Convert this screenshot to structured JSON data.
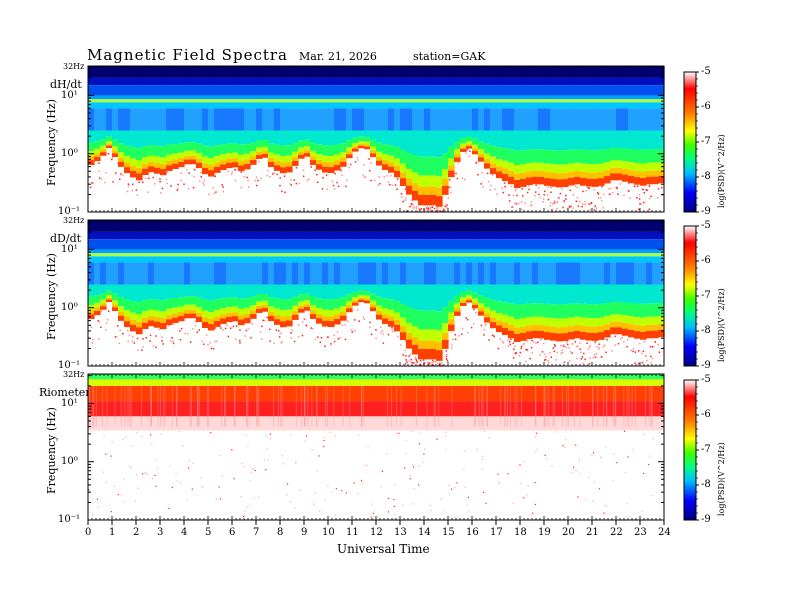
{
  "header": {
    "title": "Magnetic  Field  Spectra",
    "date": "Mar. 21, 2026",
    "station": "station=GAK"
  },
  "chart_data": {
    "type": "heatmap",
    "xlabel": "Universal Time",
    "x_ticks": [
      "0",
      "1",
      "2",
      "3",
      "4",
      "5",
      "6",
      "7",
      "8",
      "9",
      "10",
      "11",
      "12",
      "13",
      "14",
      "15",
      "16",
      "17",
      "18",
      "19",
      "20",
      "21",
      "22",
      "23",
      "24"
    ],
    "xlim": [
      0,
      24
    ],
    "colorbar": {
      "label": "log(PSD)(V^2/Hz)",
      "ticks": [
        "-5",
        "-6",
        "-7",
        "-8",
        "-9"
      ],
      "range": [
        -9,
        -5
      ],
      "colors": [
        "#000080",
        "#0000ff",
        "#00c0ff",
        "#00ff80",
        "#40ff00",
        "#ffff00",
        "#ff8000",
        "#ff0000",
        "#ffffff"
      ]
    },
    "panels": [
      {
        "name": "dH/dt",
        "ylabel": "Frequency  (Hz)",
        "top_label": "32Hz",
        "y_ticks": [
          "10¹",
          "10⁰",
          "10⁻¹"
        ],
        "ylim_hz": [
          0.1,
          32
        ],
        "boundary_hz": [
          0.6,
          0.7,
          0.9,
          1.3,
          0.7,
          0.5,
          0.4,
          0.35,
          0.45,
          0.5,
          0.4,
          0.5,
          0.55,
          0.6,
          0.7,
          0.6,
          0.45,
          0.4,
          0.5,
          0.55,
          0.6,
          0.5,
          0.55,
          0.7,
          0.95,
          0.6,
          0.5,
          0.45,
          0.5,
          0.8,
          0.9,
          0.6,
          0.5,
          0.45,
          0.5,
          0.6,
          0.9,
          1.2,
          1.3,
          0.9,
          0.6,
          0.5,
          0.45,
          0.3,
          0.2,
          0.15,
          0.12,
          0.14,
          0.11,
          0.2,
          0.45,
          0.9,
          1.3,
          1.0,
          0.7,
          0.5,
          0.4,
          0.35,
          0.3,
          0.25,
          0.28,
          0.3,
          0.3,
          0.28,
          0.27,
          0.26,
          0.28,
          0.3,
          0.28,
          0.27,
          0.27,
          0.3,
          0.35,
          0.35,
          0.32,
          0.3,
          0.28,
          0.3,
          0.3,
          0.32
        ],
        "bright_line_hz": 8.0
      },
      {
        "name": "dD/dt",
        "ylabel": "Frequency  (Hz)",
        "top_label": "32Hz",
        "y_ticks": [
          "10¹",
          "10⁰",
          "10⁻¹"
        ],
        "ylim_hz": [
          0.1,
          32
        ],
        "boundary_hz": [
          0.6,
          0.7,
          0.9,
          1.3,
          0.7,
          0.5,
          0.4,
          0.35,
          0.45,
          0.5,
          0.4,
          0.5,
          0.55,
          0.6,
          0.7,
          0.6,
          0.45,
          0.4,
          0.5,
          0.55,
          0.6,
          0.5,
          0.55,
          0.7,
          0.95,
          0.6,
          0.5,
          0.45,
          0.5,
          0.8,
          0.9,
          0.6,
          0.5,
          0.45,
          0.5,
          0.6,
          0.9,
          1.2,
          1.3,
          0.9,
          0.6,
          0.5,
          0.45,
          0.3,
          0.2,
          0.15,
          0.12,
          0.14,
          0.11,
          0.2,
          0.45,
          0.9,
          1.3,
          1.0,
          0.7,
          0.5,
          0.4,
          0.35,
          0.3,
          0.25,
          0.28,
          0.3,
          0.3,
          0.28,
          0.27,
          0.26,
          0.28,
          0.3,
          0.28,
          0.27,
          0.27,
          0.3,
          0.35,
          0.35,
          0.32,
          0.3,
          0.28,
          0.3,
          0.3,
          0.32
        ],
        "bright_line_hz": 8.0
      },
      {
        "name": "Riometer",
        "ylabel": "Frequency  (Hz)",
        "top_label": "32Hz",
        "y_ticks": [
          "10¹",
          "10⁰",
          "10⁻¹"
        ],
        "ylim_hz": [
          0.1,
          32
        ],
        "red_band_hz": [
          6,
          20
        ]
      }
    ]
  }
}
